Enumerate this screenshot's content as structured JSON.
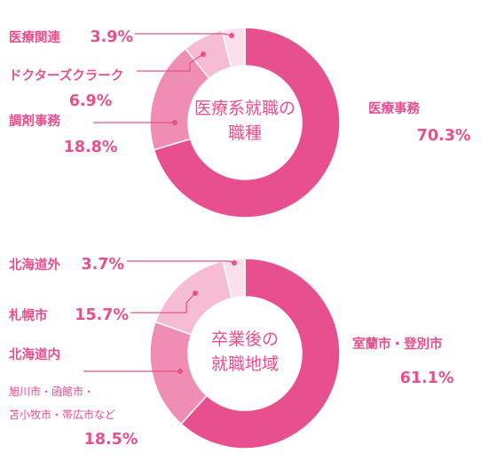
{
  "chart_data": [
    {
      "type": "pie",
      "center_label": [
        "医療系就職の",
        "職種"
      ],
      "categories": [
        "医療事務",
        "調剤事務",
        "ドクターズクラーク",
        "医療関連"
      ],
      "values": [
        70.3,
        18.8,
        6.9,
        3.9
      ],
      "value_labels": [
        "70.3%",
        "18.8%",
        "6.9%",
        "3.9%"
      ],
      "colors": [
        "#e84f8f",
        "#f08db5",
        "#f6bcd4",
        "#fbe0ec"
      ]
    },
    {
      "type": "pie",
      "center_label": [
        "卒業後の",
        "就職地域"
      ],
      "categories": [
        "室蘭市・登別市",
        "北海道内",
        "札幌市",
        "北海道外"
      ],
      "category_notes": [
        "",
        "旭川市・函館市・|苫小牧市・帯広市など",
        "",
        ""
      ],
      "values": [
        61.1,
        18.5,
        15.7,
        3.7
      ],
      "value_labels": [
        "61.1%",
        "18.5%",
        "15.7%",
        "3.7%"
      ],
      "colors": [
        "#e84f8f",
        "#f08db5",
        "#f6bcd4",
        "#fbe0ec"
      ]
    }
  ],
  "style": {
    "text_color": "#e84f8f",
    "line_color": "#e84f8f"
  }
}
